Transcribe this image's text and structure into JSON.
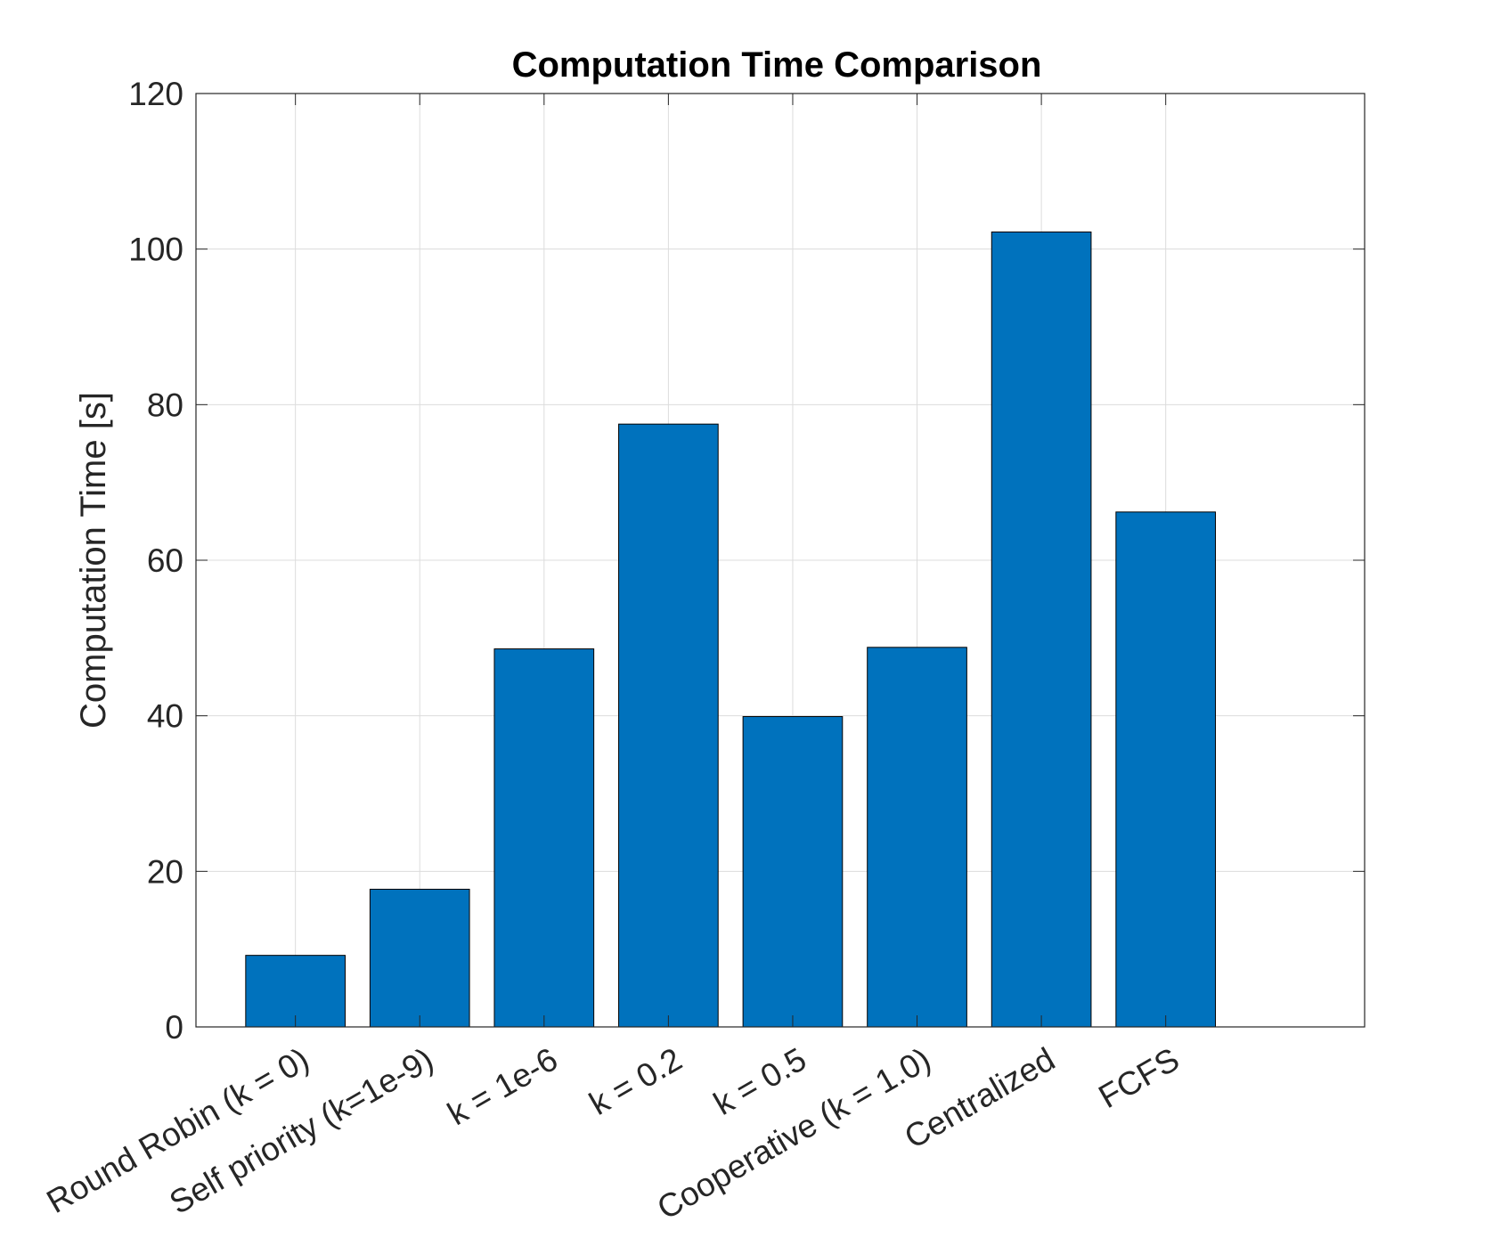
{
  "chart_data": {
    "type": "bar",
    "title": "Computation Time Comparison",
    "xlabel": "",
    "ylabel": "Computation Time [s]",
    "categories": [
      "Round Robin (k = 0)",
      "Self priority (k=1e-9)",
      "k = 1e-6",
      "k = 0.2",
      "k = 0.5",
      "Cooperative (k = 1.0)",
      "Centralized",
      "FCFS"
    ],
    "values": [
      9.2,
      17.7,
      48.6,
      77.5,
      39.9,
      48.8,
      102.2,
      66.2
    ],
    "ylim": [
      0,
      120
    ],
    "yticks": [
      0,
      20,
      40,
      60,
      80,
      100,
      120
    ],
    "xlim": [
      0.2,
      9.6
    ],
    "grid": true,
    "bar_color": "#0072BD",
    "tick_label_rotation": -30
  }
}
